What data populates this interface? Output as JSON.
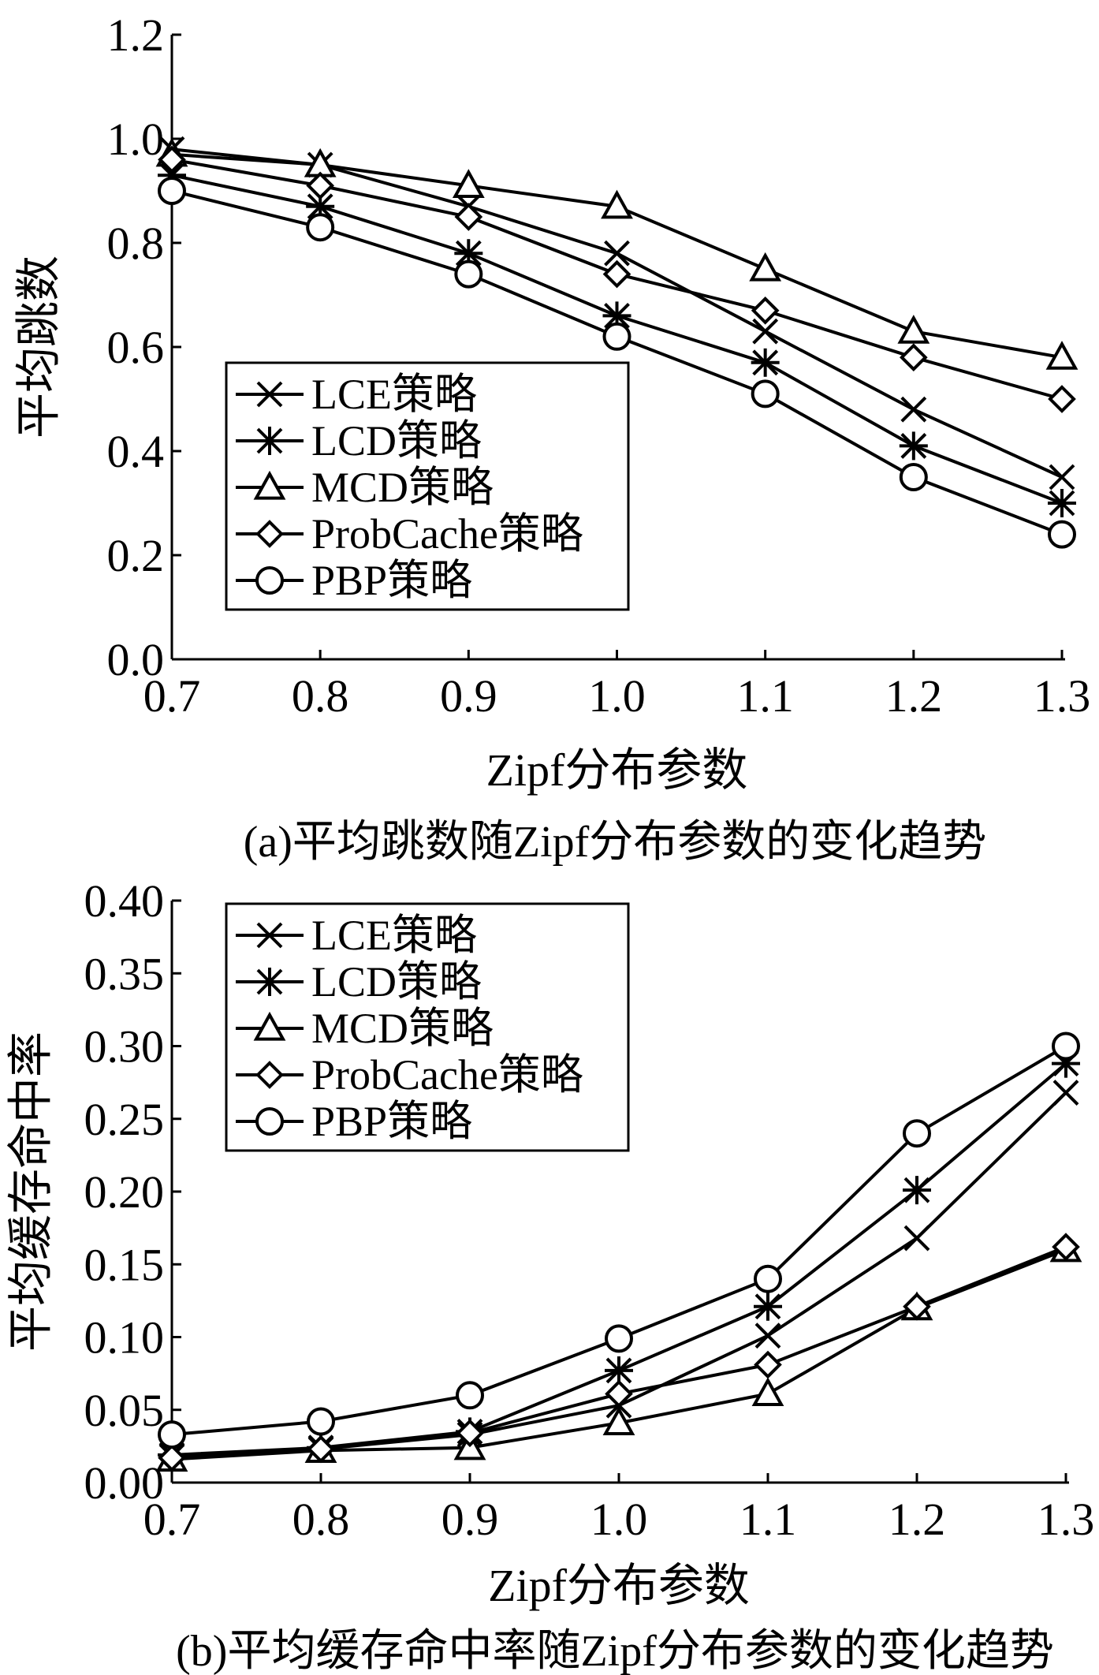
{
  "chart_data": [
    {
      "type": "line",
      "x": [
        0.7,
        0.8,
        0.9,
        1.0,
        1.1,
        1.2,
        1.3
      ],
      "xtick_labels": [
        "0.7",
        "0.8",
        "0.9",
        "1.0",
        "1.1",
        "1.2",
        "1.3"
      ],
      "ytick_labels": [
        "0.0",
        "0.2",
        "0.4",
        "0.6",
        "0.8",
        "1.0",
        "1.2"
      ],
      "xlabel": "Zipf分布参数",
      "ylabel": "平均跳数",
      "caption": "(a)平均跳数随Zipf分布参数的变化趋势",
      "xlim": [
        0.7,
        1.3
      ],
      "ylim": [
        0.0,
        1.2
      ],
      "legend_position": "bottom-left",
      "series": [
        {
          "name": "LCE策略",
          "marker": "x",
          "values": [
            0.98,
            0.95,
            0.87,
            0.78,
            0.63,
            0.48,
            0.35
          ]
        },
        {
          "name": "LCD策略",
          "marker": "asterisk",
          "values": [
            0.93,
            0.87,
            0.78,
            0.66,
            0.57,
            0.41,
            0.3
          ]
        },
        {
          "name": "MCD策略",
          "marker": "triangle",
          "values": [
            0.97,
            0.95,
            0.91,
            0.87,
            0.75,
            0.63,
            0.58
          ]
        },
        {
          "name": "ProbCache策略",
          "marker": "diamond",
          "values": [
            0.96,
            0.91,
            0.85,
            0.74,
            0.67,
            0.58,
            0.5
          ]
        },
        {
          "name": "PBP策略",
          "marker": "circle",
          "values": [
            0.9,
            0.83,
            0.74,
            0.62,
            0.51,
            0.35,
            0.24
          ]
        }
      ]
    },
    {
      "type": "line",
      "x": [
        0.7,
        0.8,
        0.9,
        1.0,
        1.1,
        1.2,
        1.3
      ],
      "xtick_labels": [
        "0.7",
        "0.8",
        "0.9",
        "1.0",
        "1.1",
        "1.2",
        "1.3"
      ],
      "ytick_labels": [
        "0.00",
        "0.05",
        "0.10",
        "0.15",
        "0.20",
        "0.25",
        "0.30",
        "0.35",
        "0.40"
      ],
      "xlabel": "Zipf分布参数",
      "ylabel": "平均缓存命中率",
      "caption": "(b)平均缓存命中率随Zipf分布参数的变化趋势",
      "xlim": [
        0.7,
        1.3
      ],
      "ylim": [
        0.0,
        0.4
      ],
      "legend_position": "top-left",
      "series": [
        {
          "name": "LCE策略",
          "marker": "x",
          "values": [
            0.018,
            0.023,
            0.033,
            0.053,
            0.101,
            0.168,
            0.268
          ]
        },
        {
          "name": "LCD策略",
          "marker": "asterisk",
          "values": [
            0.019,
            0.024,
            0.035,
            0.077,
            0.121,
            0.201,
            0.288
          ]
        },
        {
          "name": "MCD策略",
          "marker": "triangle",
          "values": [
            0.016,
            0.022,
            0.024,
            0.041,
            0.061,
            0.12,
            0.16
          ]
        },
        {
          "name": "ProbCache策略",
          "marker": "diamond",
          "values": [
            0.017,
            0.023,
            0.034,
            0.061,
            0.081,
            0.121,
            0.162
          ]
        },
        {
          "name": "PBP策略",
          "marker": "circle",
          "values": [
            0.033,
            0.042,
            0.06,
            0.099,
            0.14,
            0.24,
            0.3
          ]
        }
      ]
    }
  ]
}
